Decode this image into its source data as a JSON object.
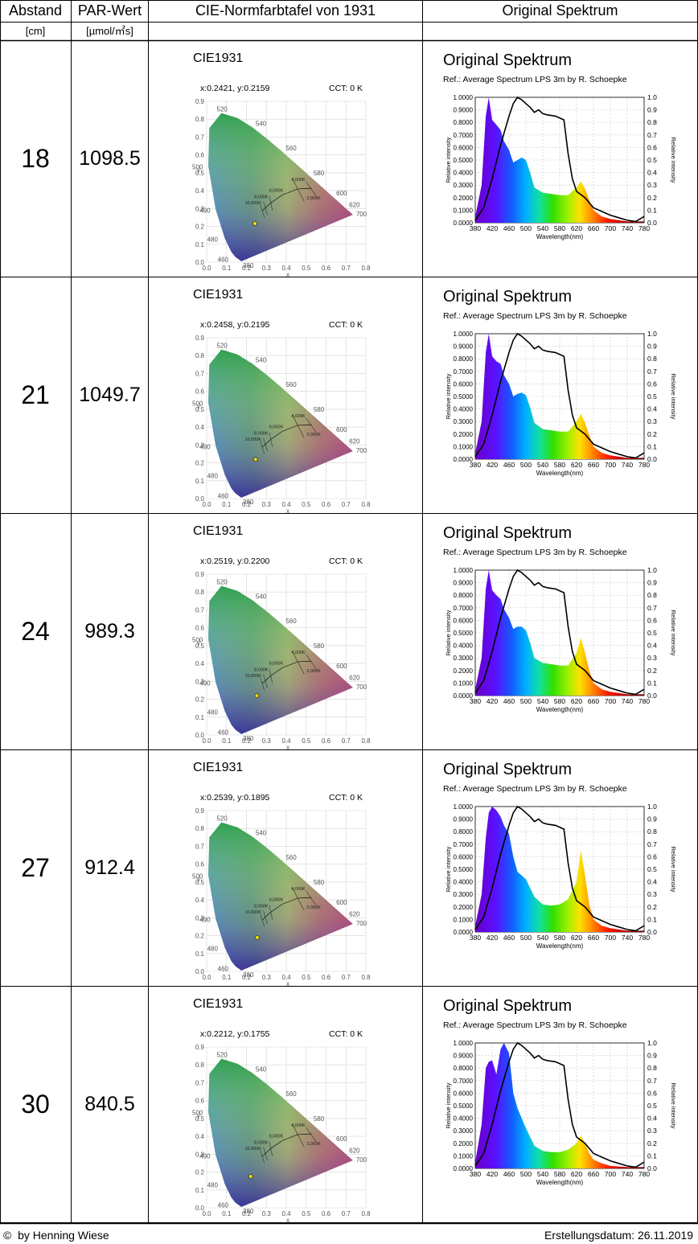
{
  "header": {
    "col_distance": "Abstand",
    "col_par": "PAR-Wert",
    "col_cie": "CIE-Normfarbtafel von 1931",
    "col_spectrum": "Original Spektrum",
    "unit_distance": "[cm]",
    "unit_par": "[µmol/㎡s]"
  },
  "cie_chart": {
    "title": "CIE1931",
    "cct_label": "CCT: 0 K",
    "x_ticks": [
      "0.0",
      "0.1",
      "0.2",
      "0.3",
      "0.4",
      "0.5",
      "0.6",
      "0.7",
      "0.8"
    ],
    "y_ticks": [
      "0.9",
      "0.8",
      "0.7",
      "0.6",
      "0.5",
      "0.4",
      "0.3",
      "0.2",
      "0.1",
      "0.0"
    ],
    "xlabel": "x",
    "ylabel": "y",
    "wavelength_labels": [
      "520",
      "540",
      "560",
      "580",
      "600",
      "620",
      "700",
      "500",
      "490",
      "480",
      "460",
      "380"
    ],
    "cct_labels": [
      "4,000K",
      "6,000K",
      "8,000K",
      "10,000K",
      "2,000K"
    ]
  },
  "spectrum_chart": {
    "title": "Original Spektrum",
    "ref": "Ref.: Average Spectrum LPS 3m by R. Schoepke",
    "xlabel": "Wavelength(nm)",
    "ylabel_left": "Relative intensity",
    "ylabel_right": "Relative intensity",
    "x_ticks": [
      "380",
      "420",
      "460",
      "500",
      "540",
      "580",
      "620",
      "660",
      "700",
      "740",
      "780"
    ],
    "y_left_ticks": [
      "1.0000",
      "0.9000",
      "0.8000",
      "0.7000",
      "0.6000",
      "0.5000",
      "0.4000",
      "0.3000",
      "0.2000",
      "0.1000",
      "0.0000"
    ],
    "y_right_ticks": [
      "1.0",
      "0.9",
      "0.8",
      "0.7",
      "0.6",
      "0.5",
      "0.4",
      "0.3",
      "0.2",
      "0.1",
      "0.0"
    ]
  },
  "rows": [
    {
      "distance": "18",
      "par": "1098.5",
      "coords": "x:0.2421, y:0.2159",
      "cie_x": 0.2421,
      "cie_y": 0.2159
    },
    {
      "distance": "21",
      "par": "1049.7",
      "coords": "x:0.2458, y:0.2195",
      "cie_x": 0.2458,
      "cie_y": 0.2195
    },
    {
      "distance": "24",
      "par": "989.3",
      "coords": "x:0.2519, y:0.2200",
      "cie_x": 0.2519,
      "cie_y": 0.22
    },
    {
      "distance": "27",
      "par": "912.4",
      "coords": "x:0.2539, y:0.1895",
      "cie_x": 0.2539,
      "cie_y": 0.1895
    },
    {
      "distance": "30",
      "par": "840.5",
      "coords": "x:0.2212, y:0.1755",
      "cie_x": 0.2212,
      "cie_y": 0.1755
    }
  ],
  "chart_data": [
    {
      "type": "area",
      "title": "Original Spektrum",
      "xlabel": "Wavelength(nm)",
      "ylabel": "Relative intensity",
      "xlim": [
        380,
        780
      ],
      "ylim": [
        0,
        1
      ],
      "x": [
        380,
        395,
        405,
        412,
        420,
        430,
        440,
        448,
        460,
        470,
        480,
        490,
        500,
        510,
        520,
        540,
        560,
        580,
        600,
        620,
        630,
        640,
        650,
        660,
        680,
        700,
        740,
        780
      ],
      "series": [
        {
          "values": [
            0.05,
            0.3,
            0.85,
            1.0,
            0.82,
            0.78,
            0.74,
            0.65,
            0.58,
            0.48,
            0.5,
            0.52,
            0.5,
            0.4,
            0.28,
            0.24,
            0.23,
            0.22,
            0.22,
            0.28,
            0.33,
            0.27,
            0.18,
            0.1,
            0.05,
            0.03,
            0.01,
            0.01
          ]
        }
      ]
    },
    {
      "type": "area",
      "title": "Original Spektrum",
      "xlabel": "Wavelength(nm)",
      "ylabel": "Relative intensity",
      "xlim": [
        380,
        780
      ],
      "ylim": [
        0,
        1
      ],
      "x": [
        380,
        395,
        405,
        412,
        420,
        430,
        440,
        448,
        460,
        470,
        480,
        490,
        500,
        510,
        520,
        540,
        560,
        580,
        600,
        620,
        630,
        640,
        650,
        660,
        680,
        700,
        740,
        780
      ],
      "series": [
        {
          "values": [
            0.05,
            0.3,
            0.85,
            1.0,
            0.82,
            0.78,
            0.76,
            0.67,
            0.6,
            0.5,
            0.52,
            0.53,
            0.51,
            0.41,
            0.29,
            0.24,
            0.23,
            0.22,
            0.22,
            0.3,
            0.36,
            0.29,
            0.19,
            0.1,
            0.05,
            0.03,
            0.01,
            0.01
          ]
        }
      ]
    },
    {
      "type": "area",
      "title": "Original Spektrum",
      "xlabel": "Wavelength(nm)",
      "ylabel": "Relative intensity",
      "xlim": [
        380,
        780
      ],
      "ylim": [
        0,
        1
      ],
      "x": [
        380,
        395,
        405,
        412,
        420,
        430,
        440,
        448,
        460,
        470,
        480,
        490,
        500,
        510,
        520,
        540,
        560,
        580,
        600,
        620,
        630,
        640,
        650,
        660,
        680,
        700,
        740,
        780
      ],
      "series": [
        {
          "values": [
            0.05,
            0.3,
            0.85,
            1.0,
            0.84,
            0.8,
            0.77,
            0.69,
            0.62,
            0.53,
            0.55,
            0.55,
            0.52,
            0.42,
            0.3,
            0.26,
            0.25,
            0.24,
            0.24,
            0.34,
            0.46,
            0.34,
            0.2,
            0.1,
            0.05,
            0.03,
            0.01,
            0.01
          ]
        }
      ]
    },
    {
      "type": "area",
      "title": "Original Spektrum",
      "xlabel": "Wavelength(nm)",
      "ylabel": "Relative intensity",
      "xlim": [
        380,
        780
      ],
      "ylim": [
        0,
        1
      ],
      "x": [
        380,
        395,
        405,
        412,
        420,
        430,
        440,
        448,
        460,
        470,
        480,
        490,
        500,
        510,
        520,
        540,
        560,
        580,
        600,
        620,
        630,
        640,
        650,
        660,
        680,
        700,
        740,
        780
      ],
      "series": [
        {
          "values": [
            0.05,
            0.3,
            0.75,
            0.95,
            1.0,
            0.97,
            0.92,
            0.85,
            0.78,
            0.6,
            0.48,
            0.45,
            0.42,
            0.35,
            0.28,
            0.22,
            0.21,
            0.22,
            0.26,
            0.4,
            0.65,
            0.45,
            0.22,
            0.1,
            0.05,
            0.03,
            0.01,
            0.01
          ]
        }
      ]
    },
    {
      "type": "area",
      "title": "Original Spektrum",
      "xlabel": "Wavelength(nm)",
      "ylabel": "Relative intensity",
      "xlim": [
        380,
        780
      ],
      "ylim": [
        0,
        1
      ],
      "x": [
        380,
        395,
        405,
        412,
        420,
        430,
        440,
        448,
        460,
        470,
        480,
        490,
        500,
        510,
        520,
        540,
        560,
        580,
        600,
        620,
        630,
        640,
        650,
        660,
        680,
        700,
        740,
        780
      ],
      "series": [
        {
          "values": [
            0.05,
            0.35,
            0.8,
            0.85,
            0.86,
            0.75,
            0.95,
            1.0,
            0.92,
            0.6,
            0.48,
            0.4,
            0.32,
            0.25,
            0.18,
            0.14,
            0.13,
            0.13,
            0.15,
            0.2,
            0.26,
            0.2,
            0.12,
            0.07,
            0.04,
            0.02,
            0.01,
            0.01
          ]
        }
      ]
    }
  ]
}
